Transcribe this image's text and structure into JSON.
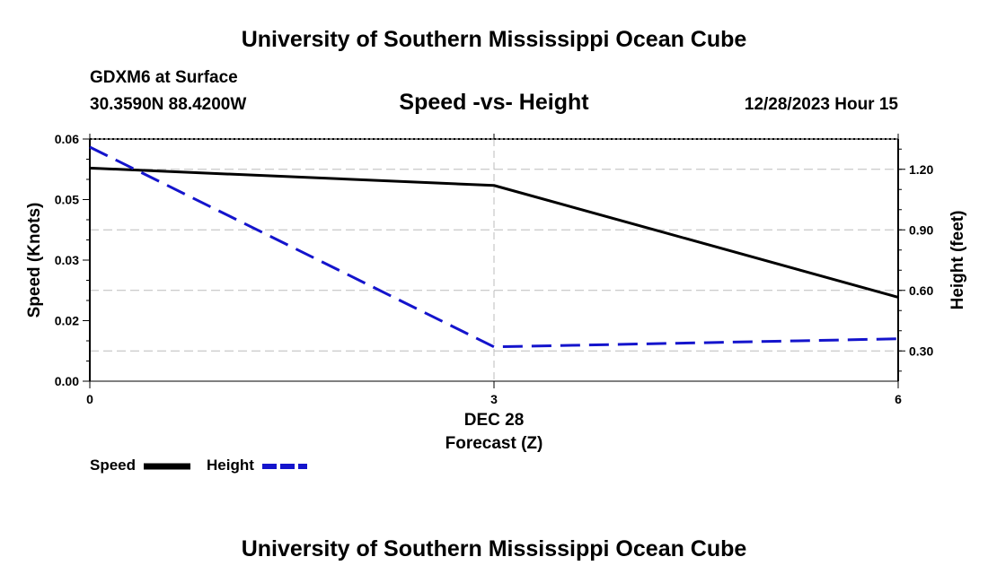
{
  "header": {
    "title": "University of Southern Mississippi Ocean Cube",
    "station": "GDXM6 at Surface",
    "location": "30.3590N  88.4200W",
    "datetime": "12/28/2023 Hour 15"
  },
  "footer": {
    "title": "University of Southern Mississippi Ocean Cube"
  },
  "chart_data": {
    "type": "line",
    "title": "Speed -vs- Height",
    "xlabel": "Forecast (Z)",
    "xlabel_date": "DEC 28",
    "x": [
      0,
      3,
      6
    ],
    "x_ticks": [
      0,
      3,
      6
    ],
    "x_tick_labels": [
      "0",
      "3",
      "6"
    ],
    "xlim": [
      0,
      6
    ],
    "ylabel_left": "Speed (Knots)",
    "ylabel_right": "Height (feet)",
    "ylim_left": [
      0,
      0.06
    ],
    "ylim_right": [
      0.15,
      1.35
    ],
    "left_ticks": [
      0,
      0.015,
      0.03,
      0.045,
      0.06
    ],
    "left_tick_labels": [
      "0.00",
      "0.02",
      "0.03",
      "0.05",
      "0.06"
    ],
    "right_ticks": [
      0.3,
      0.6,
      0.9,
      1.2
    ],
    "right_tick_labels": [
      "0.30",
      "0.60",
      "0.90",
      "1.20"
    ],
    "grid": true,
    "legend_position": "bottom-left",
    "series": [
      {
        "name": "Speed",
        "axis": "left",
        "color": "#000000",
        "dash": "solid",
        "values": [
          0.0528,
          0.0485,
          0.0208
        ]
      },
      {
        "name": "Height",
        "axis": "right",
        "color": "#1414cc",
        "dash": "dashed",
        "values": [
          1.31,
          0.32,
          0.36
        ]
      }
    ]
  }
}
